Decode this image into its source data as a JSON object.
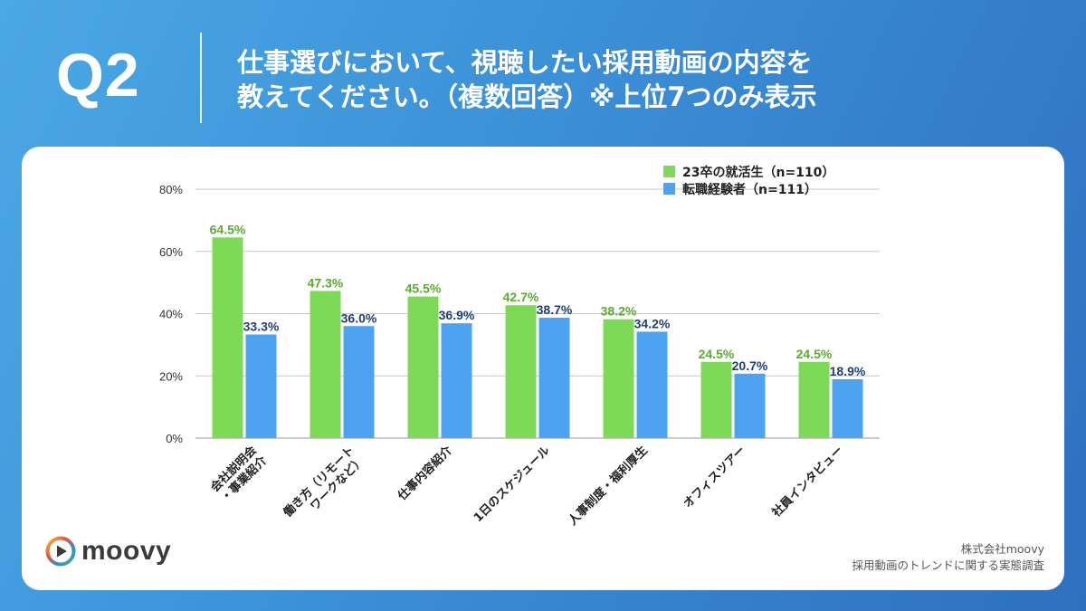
{
  "header": {
    "question_label": "Q2",
    "title_line1": "仕事選びにおいて、視聴したい採用動画の内容を",
    "title_line2": "教えてください。（複数回答）※上位7つのみ表示"
  },
  "chart_data": {
    "type": "bar",
    "categories": [
      [
        "会社説明会",
        "・事業紹介"
      ],
      [
        "働き方（リモート",
        "ワークなど）"
      ],
      [
        "仕事内容紹介"
      ],
      [
        "1日のスケジュール"
      ],
      [
        "人事制度・福利厚生"
      ],
      [
        "オフィスツアー"
      ],
      [
        "社員インタビュー"
      ]
    ],
    "series": [
      {
        "name": "23卒の就活生（n=110）",
        "color": "#7ed957",
        "label_color": "#5aac2e",
        "values": [
          64.5,
          47.3,
          45.5,
          42.7,
          38.2,
          24.5,
          24.5
        ]
      },
      {
        "name": "転職経験者（n=111）",
        "color": "#4da3f0",
        "label_color": "#1f3f78",
        "values": [
          33.3,
          36.0,
          36.9,
          38.7,
          34.2,
          20.7,
          18.9
        ]
      }
    ],
    "yticks": [
      "0%",
      "20%",
      "40%",
      "60%",
      "80%"
    ],
    "ylim": [
      0,
      80
    ],
    "value_suffix": "%",
    "grid": true,
    "legend_position": "top-right",
    "category_label_rotation": "-45deg"
  },
  "branding": {
    "logo_text": "moovy"
  },
  "source": {
    "line1": "株式会社moovy",
    "line2": "採用動画のトレンドに関する実態調査"
  }
}
